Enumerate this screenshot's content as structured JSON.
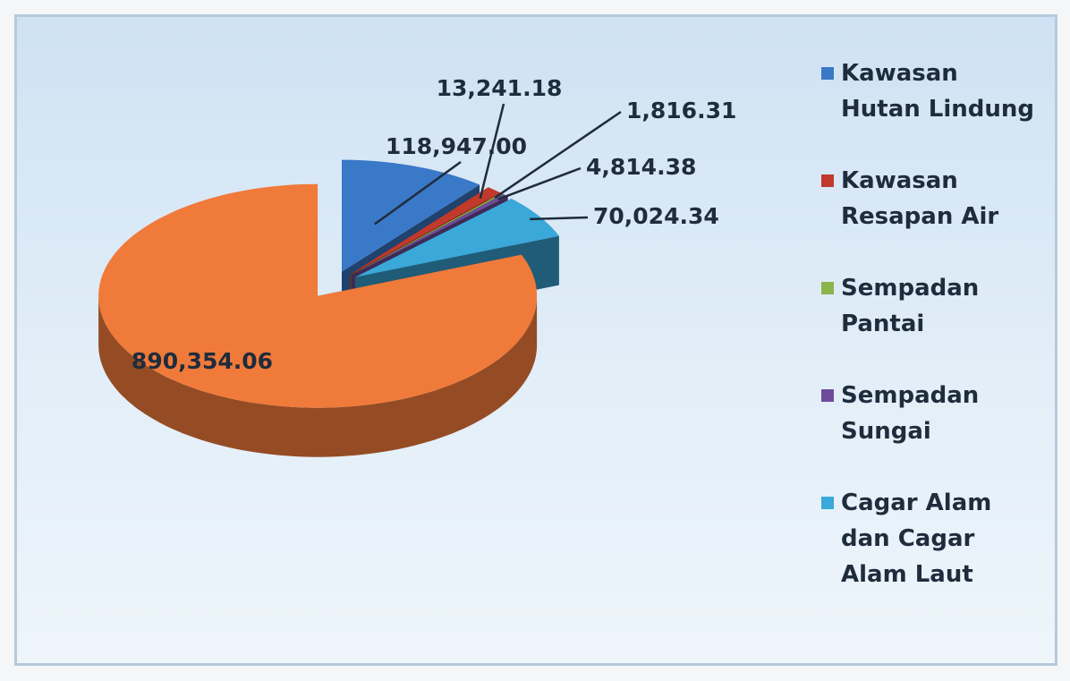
{
  "chart_data": {
    "type": "pie",
    "categories": [
      "Kawasan Hutan Lindung",
      "Kawasan Resapan Air",
      "Sempadan Pantai",
      "Sempadan Sungai",
      "Cagar Alam dan Cagar Alam Laut",
      null
    ],
    "values": [
      118947.0,
      13241.18,
      1816.31,
      4814.38,
      70024.34,
      890354.06
    ],
    "value_labels": [
      "118,947.00",
      "13,241.18",
      "1,816.31",
      "4,814.38",
      "70,024.34",
      "890,354.06"
    ],
    "colors": [
      "#3a78c8",
      "#c0392b",
      "#8ab54a",
      "#6e4c9a",
      "#3aa8d8",
      "#f07a3a"
    ],
    "legend": "right"
  }
}
